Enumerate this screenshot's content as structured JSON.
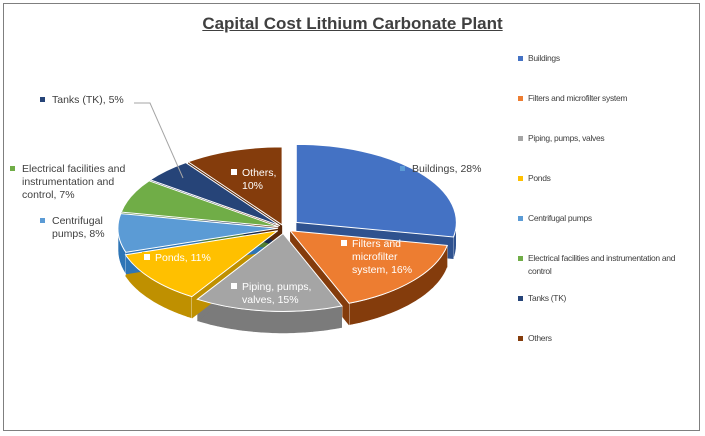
{
  "chart_data": {
    "type": "pie",
    "title": "Capital Cost Lithium Carbonate Plant",
    "slices": [
      {
        "name": "Buildings",
        "label": [
          "Buildings, 28%"
        ],
        "value": 28,
        "color": "#4472c4",
        "side": "#2f528f",
        "legend": [
          "Buildings"
        ]
      },
      {
        "name": "Filters and microfilter system",
        "label": [
          "Filters and",
          "microfilter",
          "system, 16%"
        ],
        "value": 16,
        "color": "#ed7d31",
        "side": "#843c0c",
        "legend": [
          "Filters and microfilter system"
        ]
      },
      {
        "name": "Piping, pumps, valves",
        "label": [
          "Piping, pumps,",
          "valves, 15%"
        ],
        "value": 15,
        "color": "#a5a5a5",
        "side": "#7b7b7b",
        "legend": [
          "Piping, pumps, valves"
        ]
      },
      {
        "name": "Ponds",
        "label": [
          "Ponds, 11%"
        ],
        "value": 11,
        "color": "#ffc000",
        "side": "#bf9000",
        "legend": [
          "Ponds"
        ]
      },
      {
        "name": "Centrifugal pumps",
        "label": [
          "Centrifugal",
          "pumps, 8%"
        ],
        "value": 8,
        "color": "#5b9bd5",
        "side": "#2e75b6",
        "legend": [
          "Centrifugal pumps"
        ]
      },
      {
        "name": "Electrical facilities and instrumentation and control",
        "label": [
          "Electrical facilities and",
          "instrumentation and",
          "control, 7%"
        ],
        "value": 7,
        "color": "#70ad47",
        "side": "#507e32",
        "legend": [
          "Electrical facilities and instrumentation and",
          "control"
        ]
      },
      {
        "name": "Tanks (TK)",
        "label": [
          "Tanks (TK), 5%"
        ],
        "value": 5,
        "color": "#264478",
        "side": "#172b4d",
        "legend": [
          "Tanks (TK)"
        ]
      },
      {
        "name": "Others",
        "label": [
          "Others,",
          "10%"
        ],
        "value": 10,
        "color": "#843c0c",
        "side": "#5a2808",
        "legend": [
          "Others"
        ]
      }
    ],
    "legend_position": "right",
    "style": "3d-exploded"
  }
}
